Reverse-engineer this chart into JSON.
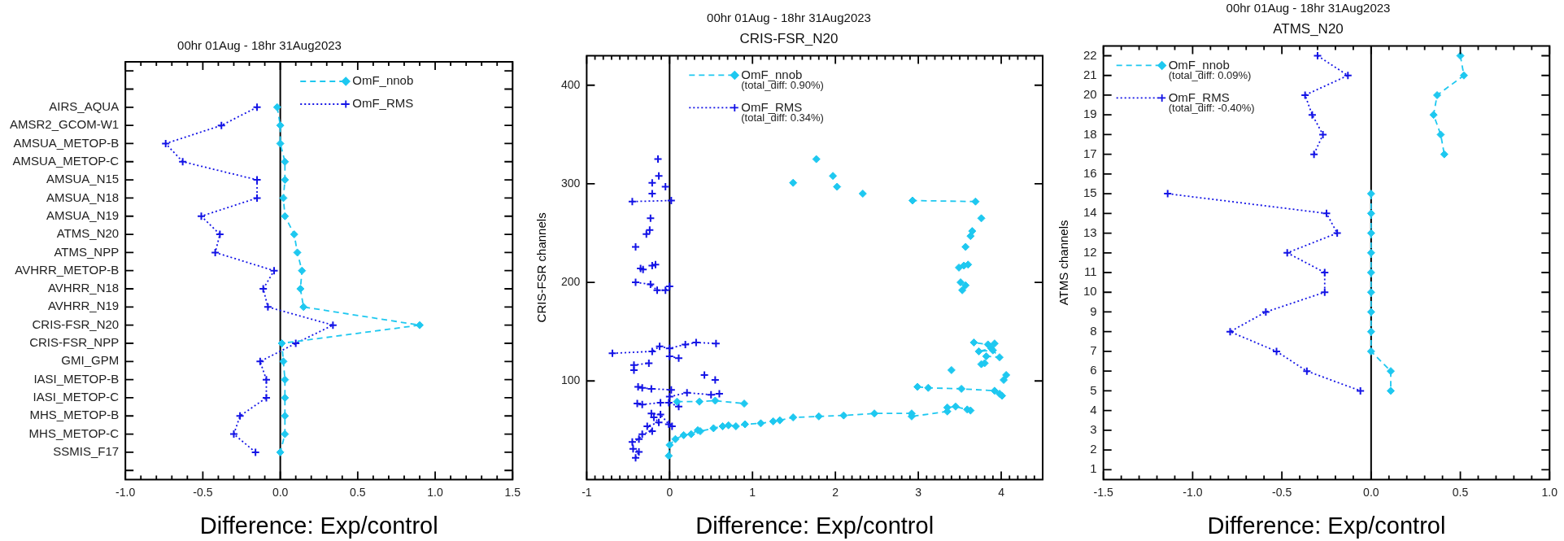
{
  "chart_data": [
    {
      "type": "line",
      "orientation": "horizontal",
      "title": "00hr 01Aug - 18hr 31Aug2023",
      "xlabel": "Difference: Exp/control",
      "categories": [
        null,
        null,
        "AIRS_AQUA",
        "AMSR2_GCOM-W1",
        "AMSUA_METOP-B",
        "AMSUA_METOP-C",
        "AMSUA_N15",
        "AMSUA_N18",
        "AMSUA_N19",
        "ATMS_N20",
        "ATMS_NPP",
        "AVHRR_METOP-B",
        "AVHRR_N18",
        "AVHRR_N19",
        "CRIS-FSR_N20",
        "CRIS-FSR_NPP",
        "GMI_GPM",
        "IASI_METOP-B",
        "IASI_METOP-C",
        "MHS_METOP-B",
        "MHS_METOP-C",
        "SSMIS_F17",
        null
      ],
      "series": [
        {
          "name": "OmF_nnob",
          "color": "#1ec8f0",
          "marker": "diamond",
          "line_style": "dashed",
          "values": [
            null,
            null,
            -0.02,
            0,
            0,
            0.03,
            0.03,
            0.02,
            0.03,
            0.09,
            0.11,
            0.14,
            0.13,
            0.15,
            0.9,
            0.01,
            0.02,
            0.03,
            0.03,
            0.03,
            0.03,
            0,
            null
          ]
        },
        {
          "name": "OmF_RMS",
          "color": "#1414e6",
          "marker": "cross",
          "line_style": "dotted",
          "values": [
            null,
            null,
            -0.15,
            -0.38,
            -0.74,
            -0.63,
            -0.15,
            -0.15,
            -0.51,
            -0.39,
            -0.42,
            -0.04,
            -0.11,
            -0.08,
            0.34,
            0.1,
            -0.13,
            -0.09,
            -0.09,
            -0.26,
            -0.3,
            -0.16,
            null
          ]
        }
      ],
      "xlim": [
        -1,
        1.5
      ],
      "xticks": [
        {
          "value": -1,
          "label": "-1.0"
        },
        {
          "value": -0.9,
          "label": null
        },
        {
          "value": -0.8,
          "label": null
        },
        {
          "value": -0.7,
          "label": null
        },
        {
          "value": -0.6,
          "label": null
        },
        {
          "value": -0.5,
          "label": "-0.5"
        },
        {
          "value": -0.4,
          "label": null
        },
        {
          "value": -0.3,
          "label": null
        },
        {
          "value": -0.2,
          "label": null
        },
        {
          "value": -0.1,
          "label": null
        },
        {
          "value": 0,
          "label": "0.0"
        },
        {
          "value": 0.1,
          "label": null
        },
        {
          "value": 0.2,
          "label": null
        },
        {
          "value": 0.3,
          "label": null
        },
        {
          "value": 0.4,
          "label": null
        },
        {
          "value": 0.5,
          "label": "0.5"
        },
        {
          "value": 0.6,
          "label": null
        },
        {
          "value": 0.7,
          "label": null
        },
        {
          "value": 0.8,
          "label": null
        },
        {
          "value": 0.9,
          "label": null
        },
        {
          "value": 1,
          "label": "1.0"
        },
        {
          "value": 1.1,
          "label": null
        },
        {
          "value": 1.2,
          "label": null
        },
        {
          "value": 1.3,
          "label": null
        },
        {
          "value": 1.4,
          "label": null
        },
        {
          "value": 1.5,
          "label": "1.5"
        }
      ],
      "ref_lines": [
        {
          "axis": "x",
          "value": 0,
          "color": "#000000"
        }
      ],
      "legend": "top right"
    },
    {
      "type": "line",
      "title": "00hr 01Aug - 18hr 31Aug2023",
      "subtitle": "CRIS-FSR_N20",
      "xlabel": "Difference: Exp/control",
      "ylabel": "CRIS-FSR channels",
      "series": [
        {
          "name": "OmF_nnob",
          "color": "#1ec8f0",
          "marker": "diamond",
          "line_style": "dashed",
          "x": [
            -0.01,
            0,
            0.07,
            0.17,
            0.26,
            0.34,
            0.37,
            0.53,
            0.64,
            0.71,
            0.8,
            0.91,
            1.1,
            1.25,
            1.33,
            1.49,
            1.8,
            2.1,
            2.47,
            2.92,
            2.92,
            3.35,
            3.35,
            3.45,
            3.59,
            3.63,
            null,
            0.09,
            0.36,
            0.55,
            0.9,
            null,
            2.99,
            3.12,
            3.52,
            3.92,
            3.98,
            4.01,
            null,
            4.03,
            4.06,
            null,
            3.4,
            null,
            3.76,
            3.8,
            3.82,
            3.98,
            3.9,
            3.73,
            3.88,
            3.92,
            3.84,
            3.67,
            null,
            3.53,
            3.57,
            3.51,
            null,
            3.49,
            null,
            3.55,
            null,
            3.6,
            null,
            3.57,
            null,
            3.63,
            3.65,
            null,
            3.76,
            null,
            3.69,
            2.93,
            null,
            2.33,
            null,
            2.02,
            null,
            1.97,
            null,
            1.77,
            null,
            1.49
          ],
          "values": [
            24,
            35,
            41,
            45,
            46,
            50,
            49,
            52,
            54,
            55,
            54,
            56,
            57,
            59,
            60,
            63,
            64,
            65,
            67,
            67,
            64,
            69,
            73,
            74,
            71,
            70,
            null,
            79,
            79,
            80,
            77,
            null,
            94,
            93,
            92,
            90,
            87,
            85,
            null,
            101,
            106,
            null,
            111,
            null,
            117,
            118,
            125,
            124,
            131,
            130,
            133,
            138,
            137,
            139,
            null,
            192,
            197,
            200,
            null,
            215,
            null,
            217,
            null,
            218,
            null,
            236,
            null,
            247,
            252,
            null,
            265,
            null,
            282,
            283,
            null,
            290,
            null,
            297,
            null,
            308,
            null,
            325,
            null,
            301
          ]
        },
        {
          "name": "OmF_RMS",
          "color": "#1414e6",
          "marker": "cross",
          "line_style": "dotted",
          "x": [
            -0.41,
            -0.37,
            -0.44,
            -0.45,
            -0.37,
            -0.33,
            -0.21,
            -0.27,
            -0.13,
            -0.19,
            -0.22,
            -0.11,
            -0.01,
            0.03,
            null,
            -0.39,
            -0.33,
            -0.11,
            -0.01,
            0.11,
            null,
            -0.38,
            -0.33,
            -0.22,
            0.02,
            null,
            0,
            0.21,
            0.5,
            0.6,
            null,
            0.42,
            null,
            0.55,
            null,
            -0.43,
            -0.43,
            -0.25,
            null,
            -0.69,
            -0.21,
            -0.12,
            0,
            0.19,
            0.32,
            0.56,
            null,
            0,
            0.11,
            null,
            -0.41,
            -0.23,
            -0.15,
            -0.05,
            0,
            null,
            -0.35,
            null,
            -0.32,
            null,
            -0.21,
            -0.17,
            null,
            -0.41,
            null,
            -0.28,
            -0.24,
            null,
            -0.23,
            null,
            -0.45,
            0.02,
            null,
            -0.21,
            null,
            -0.05,
            null,
            -0.21,
            null,
            -0.13,
            null,
            -0.14
          ],
          "values": [
            22,
            28,
            31,
            38,
            41,
            46,
            49,
            54,
            58,
            63,
            67,
            66,
            56,
            54,
            null,
            77,
            76,
            78,
            78,
            74,
            null,
            94,
            93,
            92,
            91,
            null,
            84,
            88,
            86,
            87,
            null,
            106,
            null,
            101,
            null,
            111,
            116,
            118,
            null,
            128,
            130,
            135,
            133,
            137,
            139,
            138,
            null,
            125,
            123,
            null,
            200,
            198,
            192,
            192,
            196,
            null,
            214,
            null,
            213,
            null,
            217,
            218,
            null,
            236,
            null,
            249,
            253,
            null,
            265,
            null,
            282,
            283,
            null,
            290,
            null,
            297,
            null,
            301,
            null,
            308,
            null,
            325
          ]
        }
      ],
      "xlim": [
        -1,
        4.5
      ],
      "xticks": [
        -1,
        {
          "value": -0.9,
          "label": null
        },
        {
          "value": -0.8,
          "label": null
        },
        {
          "value": -0.7,
          "label": null
        },
        {
          "value": -0.6,
          "label": null
        },
        {
          "value": -0.5,
          "label": null
        },
        {
          "value": -0.4,
          "label": null
        },
        {
          "value": -0.3,
          "label": null
        },
        {
          "value": -0.2,
          "label": null
        },
        {
          "value": -0.1,
          "label": null
        },
        0,
        {
          "value": 0.1,
          "label": null
        },
        {
          "value": 0.2,
          "label": null
        },
        {
          "value": 0.3,
          "label": null
        },
        {
          "value": 0.4,
          "label": null
        },
        {
          "value": 0.5,
          "label": null
        },
        {
          "value": 0.6,
          "label": null
        },
        {
          "value": 0.7,
          "label": null
        },
        {
          "value": 0.8,
          "label": null
        },
        {
          "value": 0.9,
          "label": null
        },
        1,
        {
          "value": 1.1,
          "label": null
        },
        {
          "value": 1.2,
          "label": null
        },
        {
          "value": 1.3,
          "label": null
        },
        {
          "value": 1.4,
          "label": null
        },
        {
          "value": 1.5,
          "label": null
        },
        {
          "value": 1.6,
          "label": null
        },
        {
          "value": 1.7,
          "label": null
        },
        {
          "value": 1.8,
          "label": null
        },
        {
          "value": 1.9,
          "label": null
        },
        2,
        {
          "value": 2.1,
          "label": null
        },
        {
          "value": 2.2,
          "label": null
        },
        {
          "value": 2.3,
          "label": null
        },
        {
          "value": 2.4,
          "label": null
        },
        {
          "value": 2.5,
          "label": null
        },
        {
          "value": 2.6,
          "label": null
        },
        {
          "value": 2.7,
          "label": null
        },
        {
          "value": 2.8,
          "label": null
        },
        {
          "value": 2.9,
          "label": null
        },
        3,
        {
          "value": 3.1,
          "label": null
        },
        {
          "value": 3.2,
          "label": null
        },
        {
          "value": 3.3,
          "label": null
        },
        {
          "value": 3.4,
          "label": null
        },
        {
          "value": 3.5,
          "label": null
        },
        {
          "value": 3.6,
          "label": null
        },
        {
          "value": 3.7,
          "label": null
        },
        {
          "value": 3.8,
          "label": null
        },
        {
          "value": 3.9,
          "label": null
        },
        4,
        {
          "value": 4.1,
          "label": null
        },
        {
          "value": 4.2,
          "label": null
        },
        {
          "value": 4.3,
          "label": null
        },
        {
          "value": 4.4,
          "label": null
        }
      ],
      "ylim": [
        0,
        430
      ],
      "yticks": [
        100,
        200,
        300,
        400
      ],
      "ref_lines": [
        {
          "axis": "x",
          "value": 0,
          "color": "#000000"
        }
      ],
      "annotations": [
        "(total_diff: 0.90%)",
        "(total_diff: 0.34%)"
      ],
      "legend": "top left"
    },
    {
      "type": "line",
      "orientation": "horizontal",
      "title": "00hr 01Aug - 18hr 31Aug2023",
      "subtitle": "ATMS_N20",
      "xlabel": "Difference: Exp/control",
      "ylabel": "ATMS channels",
      "categories": [
        "22",
        "21",
        "20",
        "19",
        "18",
        "17",
        "16",
        "15",
        "14",
        "13",
        "12",
        "11",
        "10",
        "9",
        "8",
        "7",
        "6",
        "5",
        "4",
        "3",
        "2",
        "1"
      ],
      "series": [
        {
          "name": "OmF_nnob",
          "color": "#1ec8f0",
          "marker": "diamond",
          "line_style": "dashed",
          "values": [
            0.5,
            0.52,
            0.37,
            0.35,
            0.39,
            0.41,
            null,
            0,
            0,
            0,
            0,
            0,
            0,
            0,
            0,
            0,
            0.11,
            0.11,
            null,
            null,
            null,
            null
          ]
        },
        {
          "name": "OmF_RMS",
          "color": "#1414e6",
          "marker": "cross",
          "line_style": "dotted",
          "values": [
            -0.3,
            -0.13,
            -0.37,
            -0.33,
            -0.27,
            -0.32,
            null,
            -1.14,
            -0.25,
            -0.19,
            -0.47,
            -0.26,
            -0.26,
            -0.59,
            -0.79,
            -0.53,
            -0.36,
            -0.06,
            null,
            null,
            null,
            null
          ]
        }
      ],
      "xlim": [
        -1.5,
        1
      ],
      "xticks": [
        {
          "value": -1.5,
          "label": "-1.5"
        },
        {
          "value": -1.4,
          "label": null
        },
        {
          "value": -1.3,
          "label": null
        },
        {
          "value": -1.2,
          "label": null
        },
        {
          "value": -1.1,
          "label": null
        },
        {
          "value": -1,
          "label": "-1.0"
        },
        {
          "value": -0.9,
          "label": null
        },
        {
          "value": -0.8,
          "label": null
        },
        {
          "value": -0.7,
          "label": null
        },
        {
          "value": -0.6,
          "label": null
        },
        {
          "value": -0.5,
          "label": "-0.5"
        },
        {
          "value": -0.4,
          "label": null
        },
        {
          "value": -0.3,
          "label": null
        },
        {
          "value": -0.2,
          "label": null
        },
        {
          "value": -0.1,
          "label": null
        },
        {
          "value": 0,
          "label": "0.0"
        },
        {
          "value": 0.1,
          "label": null
        },
        {
          "value": 0.2,
          "label": null
        },
        {
          "value": 0.3,
          "label": null
        },
        {
          "value": 0.4,
          "label": null
        },
        {
          "value": 0.5,
          "label": "0.5"
        },
        {
          "value": 0.6,
          "label": null
        },
        {
          "value": 0.7,
          "label": null
        },
        {
          "value": 0.8,
          "label": null
        },
        {
          "value": 0.9,
          "label": null
        },
        {
          "value": 1,
          "label": "1.0"
        }
      ],
      "ref_lines": [
        {
          "axis": "x",
          "value": 0,
          "color": "#000000"
        }
      ],
      "annotations": [
        "(total_diff: 0.09%)",
        "(total_diff: -0.40%)"
      ],
      "legend": "top left"
    }
  ]
}
